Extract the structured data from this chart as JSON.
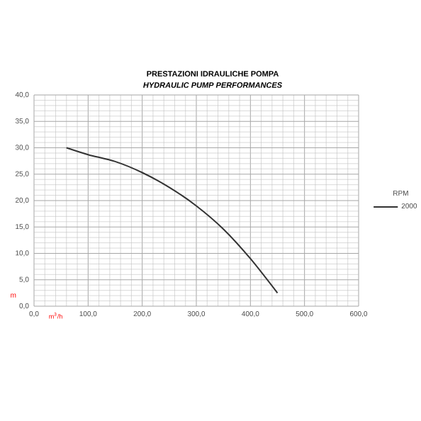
{
  "chart_data": {
    "type": "line",
    "title": "PRESTAZIONI IDRAULICHE POMPA",
    "subtitle": "HYDRAULIC PUMP PERFORMANCES",
    "xlabel": "m$^{3}$/h",
    "ylabel": "m",
    "legend_title": "RPM",
    "legend": "right",
    "grid": true,
    "marker": "none",
    "line_style": "solid",
    "xlim": [
      0,
      600
    ],
    "ylim": [
      0,
      40
    ],
    "xticks": [
      {
        "value": 0,
        "label": "0,0"
      },
      {
        "value": 100,
        "label": "100,0"
      },
      {
        "value": 200,
        "label": "200,0"
      },
      {
        "value": 300,
        "label": "300,0"
      },
      {
        "value": 400,
        "label": "400,0"
      },
      {
        "value": 500,
        "label": "500,0"
      },
      {
        "value": 600,
        "label": "600,0"
      }
    ],
    "yticks": [
      {
        "value": 0,
        "label": "0,0"
      },
      {
        "value": 5,
        "label": "5,0"
      },
      {
        "value": 10,
        "label": "10,0"
      },
      {
        "value": 15,
        "label": "15,0"
      },
      {
        "value": 20,
        "label": "20,0"
      },
      {
        "value": 25,
        "label": "25,0"
      },
      {
        "value": 30,
        "label": "30,0"
      },
      {
        "value": 35,
        "label": "35,0"
      },
      {
        "value": 40,
        "label": "40,0"
      }
    ],
    "series": [
      {
        "name": "2000",
        "color": "#333333",
        "x": [
          60,
          100,
          150,
          200,
          250,
          300,
          350,
          400,
          450
        ],
        "values": [
          30.0,
          28.7,
          27.4,
          25.3,
          22.5,
          19.0,
          14.6,
          9.0,
          2.5
        ]
      }
    ]
  }
}
